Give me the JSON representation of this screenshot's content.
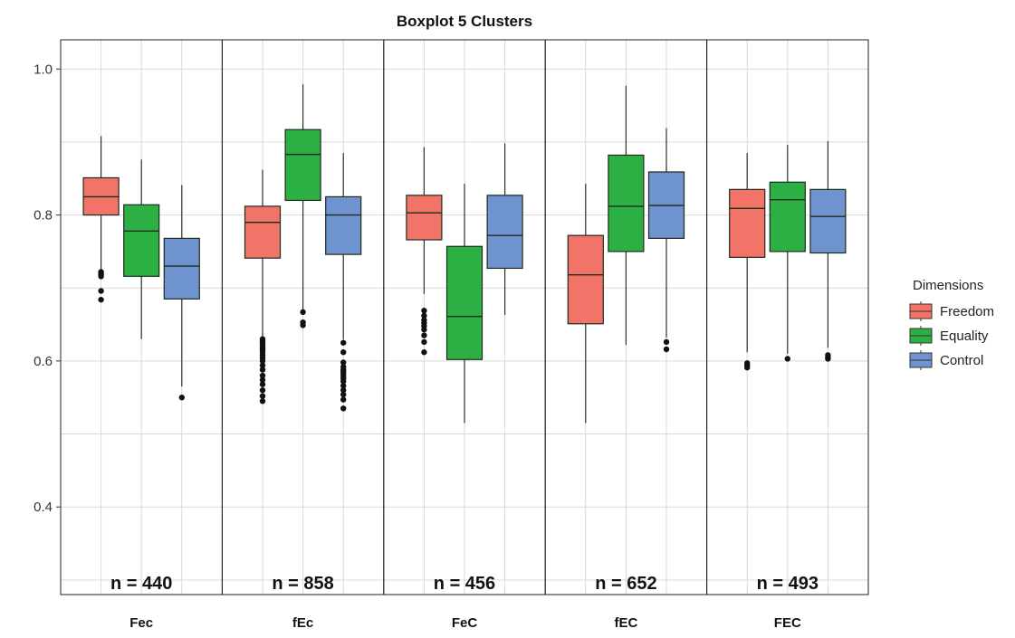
{
  "chart_data": {
    "type": "boxplot",
    "title": "Boxplot 5 Clusters",
    "xlabel": "",
    "ylabel": "",
    "ylim": [
      0.28,
      1.04
    ],
    "y_ticks": [
      0.4,
      0.6,
      0.8,
      1.0
    ],
    "y_tick_labels": [
      "0.4",
      "0.6",
      "0.8",
      "1.0"
    ],
    "grid": true,
    "legend": {
      "title": "Dimensions",
      "position": "right",
      "entries": [
        {
          "name": "Freedom",
          "color": "#F27468"
        },
        {
          "name": "Equality",
          "color": "#2DB043"
        },
        {
          "name": "Control",
          "color": "#6F93CF"
        }
      ]
    },
    "panels": [
      {
        "label": "Fec",
        "n_label": "n = 440",
        "boxes": [
          {
            "series": "Freedom",
            "whisker_low": 0.724,
            "q1": 0.8,
            "median": 0.825,
            "q3": 0.851,
            "whisker_high": 0.908,
            "outliers": [
              0.722,
              0.72,
              0.718,
              0.716,
              0.696,
              0.684
            ]
          },
          {
            "series": "Equality",
            "whisker_low": 0.63,
            "q1": 0.716,
            "median": 0.778,
            "q3": 0.814,
            "whisker_high": 0.876,
            "outliers": []
          },
          {
            "series": "Control",
            "whisker_low": 0.565,
            "q1": 0.685,
            "median": 0.73,
            "q3": 0.768,
            "whisker_high": 0.841,
            "outliers": [
              0.55
            ]
          }
        ]
      },
      {
        "label": "fEc",
        "n_label": "n = 858",
        "boxes": [
          {
            "series": "Freedom",
            "whisker_low": 0.632,
            "q1": 0.741,
            "median": 0.79,
            "q3": 0.812,
            "whisker_high": 0.862,
            "outliers": [
              0.63,
              0.627,
              0.624,
              0.621,
              0.618,
              0.615,
              0.612,
              0.608,
              0.604,
              0.6,
              0.594,
              0.588,
              0.58,
              0.574,
              0.568,
              0.56,
              0.552,
              0.545
            ]
          },
          {
            "series": "Equality",
            "whisker_low": 0.67,
            "q1": 0.82,
            "median": 0.883,
            "q3": 0.917,
            "whisker_high": 0.979,
            "outliers": [
              0.667,
              0.653,
              0.649
            ]
          },
          {
            "series": "Control",
            "whisker_low": 0.63,
            "q1": 0.746,
            "median": 0.8,
            "q3": 0.825,
            "whisker_high": 0.885,
            "outliers": [
              0.625,
              0.612,
              0.598,
              0.592,
              0.588,
              0.585,
              0.582,
              0.579,
              0.576,
              0.572,
              0.566,
              0.56,
              0.554,
              0.547,
              0.535
            ]
          }
        ]
      },
      {
        "label": "FeC",
        "n_label": "n = 456",
        "boxes": [
          {
            "series": "Freedom",
            "whisker_low": 0.692,
            "q1": 0.766,
            "median": 0.803,
            "q3": 0.827,
            "whisker_high": 0.893,
            "outliers": [
              0.669,
              0.662,
              0.656,
              0.652,
              0.648,
              0.643,
              0.635,
              0.626,
              0.612
            ]
          },
          {
            "series": "Equality",
            "whisker_low": 0.515,
            "q1": 0.602,
            "median": 0.661,
            "q3": 0.757,
            "whisker_high": 0.843,
            "outliers": []
          },
          {
            "series": "Control",
            "whisker_low": 0.663,
            "q1": 0.727,
            "median": 0.772,
            "q3": 0.827,
            "whisker_high": 0.898,
            "outliers": []
          }
        ]
      },
      {
        "label": "fEC",
        "n_label": "n = 652",
        "boxes": [
          {
            "series": "Freedom",
            "whisker_low": 0.515,
            "q1": 0.651,
            "median": 0.718,
            "q3": 0.772,
            "whisker_high": 0.843,
            "outliers": []
          },
          {
            "series": "Equality",
            "whisker_low": 0.622,
            "q1": 0.75,
            "median": 0.812,
            "q3": 0.882,
            "whisker_high": 0.977,
            "outliers": []
          },
          {
            "series": "Control",
            "whisker_low": 0.632,
            "q1": 0.768,
            "median": 0.813,
            "q3": 0.859,
            "whisker_high": 0.919,
            "outliers": [
              0.626,
              0.616
            ]
          }
        ]
      },
      {
        "label": "FEC",
        "n_label": "n = 493",
        "boxes": [
          {
            "series": "Freedom",
            "whisker_low": 0.612,
            "q1": 0.742,
            "median": 0.809,
            "q3": 0.835,
            "whisker_high": 0.885,
            "outliers": [
              0.597,
              0.594,
              0.591
            ]
          },
          {
            "series": "Equality",
            "whisker_low": 0.61,
            "q1": 0.75,
            "median": 0.821,
            "q3": 0.845,
            "whisker_high": 0.896,
            "outliers": [
              0.603
            ]
          },
          {
            "series": "Control",
            "whisker_low": 0.618,
            "q1": 0.748,
            "median": 0.798,
            "q3": 0.835,
            "whisker_high": 0.901,
            "outliers": [
              0.608,
              0.605,
              0.603
            ]
          }
        ]
      }
    ]
  }
}
